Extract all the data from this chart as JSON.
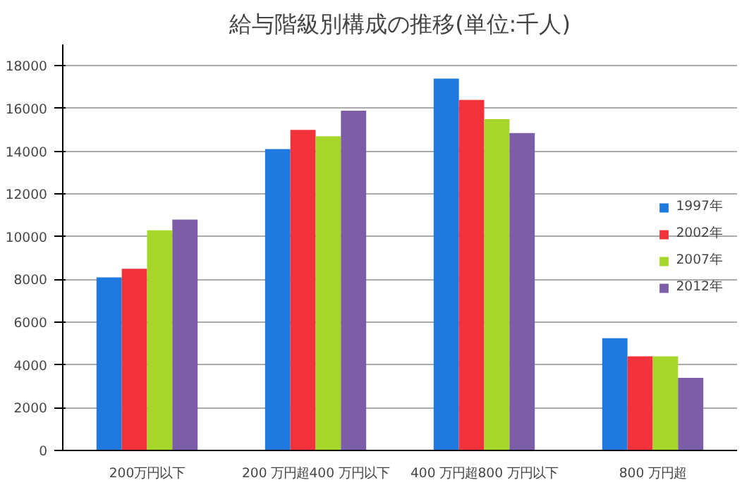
{
  "chart_data": {
    "type": "bar",
    "title": "給与階級別構成の推移(単位:千人)",
    "categories": [
      "200万円以下",
      "200 万円超400 万円以下",
      "400 万円超800 万円以下",
      "800 万円超"
    ],
    "series": [
      {
        "name": "1997年",
        "color": "#1f7ae0",
        "values": [
          8100,
          14100,
          17400,
          5250
        ]
      },
      {
        "name": "2002年",
        "color": "#f2333b",
        "values": [
          8500,
          15000,
          16400,
          4400
        ]
      },
      {
        "name": "2007年",
        "color": "#a6d62a",
        "values": [
          10300,
          14700,
          15500,
          4400
        ]
      },
      {
        "name": "2012年",
        "color": "#7b5ea7",
        "values": [
          10800,
          15900,
          14850,
          3400
        ]
      }
    ],
    "ylim": [
      0,
      19000
    ],
    "yticks": [
      0,
      2000,
      4000,
      6000,
      8000,
      10000,
      12000,
      14000,
      16000,
      18000
    ],
    "grid": "y",
    "legend": "right"
  }
}
